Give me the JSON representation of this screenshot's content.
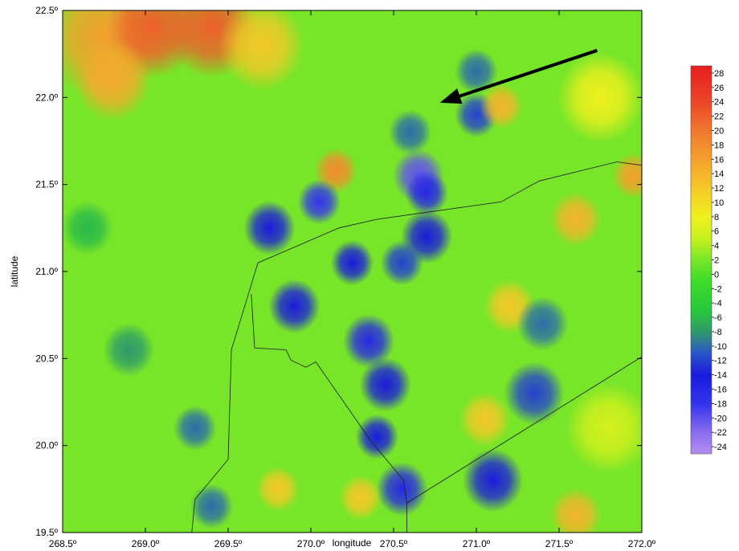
{
  "chart_data": {
    "type": "heatmap",
    "title": "",
    "xlabel": "longitude",
    "ylabel": "latitude",
    "xlim": [
      268.5,
      272.0
    ],
    "ylim": [
      19.5,
      22.5
    ],
    "x_ticks": [
      268.5,
      269.0,
      269.5,
      270.0,
      270.5,
      271.0,
      271.5,
      272.0
    ],
    "y_ticks": [
      19.5,
      20.0,
      20.5,
      21.0,
      21.5,
      22.0,
      22.5
    ],
    "x_tick_labels": [
      "268.5º",
      "269.0º",
      "269.5º",
      "270.0º",
      "270.5º",
      "271.0º",
      "271.5º",
      "272.0º"
    ],
    "y_tick_labels": [
      "19.5º",
      "20.0º",
      "20.5º",
      "21.0º",
      "21.5º",
      "22.0º",
      "22.5º"
    ],
    "colorbar": {
      "min": -25,
      "max": 29,
      "ticks": [
        28,
        26,
        24,
        22,
        20,
        18,
        16,
        14,
        12,
        10,
        8,
        6,
        4,
        2,
        0,
        -2,
        -4,
        -6,
        -8,
        -10,
        -12,
        -14,
        -16,
        -18,
        -20,
        -22,
        -24
      ],
      "tick_labels": [
        "28",
        "26",
        "24",
        "22",
        "20",
        "18",
        "16",
        "14",
        "12",
        "10",
        "8",
        "6",
        "4",
        "2",
        "0",
        "-2",
        "-4",
        "-6",
        "-8",
        "-10",
        "-12",
        "-14",
        "-16",
        "-18",
        "-20",
        "-22",
        "-24"
      ],
      "colors": [
        [
          -25,
          "#b48cf0"
        ],
        [
          -22,
          "#8a6cf0"
        ],
        [
          -18,
          "#3333ee"
        ],
        [
          -14,
          "#1a1adc"
        ],
        [
          -11,
          "#2a55c8"
        ],
        [
          -8,
          "#2f9a6a"
        ],
        [
          -5,
          "#28c83c"
        ],
        [
          -1,
          "#3cdc28"
        ],
        [
          2,
          "#78e628"
        ],
        [
          5,
          "#c8f01e"
        ],
        [
          8,
          "#f0f01e"
        ],
        [
          12,
          "#f5c828"
        ],
        [
          16,
          "#f5a02d"
        ],
        [
          20,
          "#f0782d"
        ],
        [
          24,
          "#eb4628"
        ],
        [
          29,
          "#e61e1e"
        ]
      ]
    },
    "features": {
      "centers": [
        {
          "lon": 268.75,
          "lat": 22.35,
          "value": 16,
          "r": 0.28
        },
        {
          "lon": 269.05,
          "lat": 22.4,
          "value": 22,
          "r": 0.22
        },
        {
          "lon": 269.4,
          "lat": 22.4,
          "value": 22,
          "r": 0.22
        },
        {
          "lon": 268.8,
          "lat": 22.1,
          "value": 15,
          "r": 0.18
        },
        {
          "lon": 269.7,
          "lat": 22.3,
          "value": 12,
          "r": 0.2
        },
        {
          "lon": 270.15,
          "lat": 21.58,
          "value": 18,
          "r": 0.1
        },
        {
          "lon": 270.6,
          "lat": 21.8,
          "value": -10,
          "r": 0.1
        },
        {
          "lon": 270.65,
          "lat": 21.55,
          "value": -20,
          "r": 0.12
        },
        {
          "lon": 270.7,
          "lat": 21.45,
          "value": -16,
          "r": 0.1
        },
        {
          "lon": 270.05,
          "lat": 21.4,
          "value": -18,
          "r": 0.1
        },
        {
          "lon": 269.75,
          "lat": 21.25,
          "value": -14,
          "r": 0.12
        },
        {
          "lon": 270.25,
          "lat": 21.05,
          "value": -14,
          "r": 0.1
        },
        {
          "lon": 270.7,
          "lat": 21.2,
          "value": -14,
          "r": 0.12
        },
        {
          "lon": 270.55,
          "lat": 21.05,
          "value": -12,
          "r": 0.1
        },
        {
          "lon": 269.9,
          "lat": 20.8,
          "value": -14,
          "r": 0.12
        },
        {
          "lon": 270.35,
          "lat": 20.6,
          "value": -16,
          "r": 0.12
        },
        {
          "lon": 270.45,
          "lat": 20.35,
          "value": -14,
          "r": 0.12
        },
        {
          "lon": 270.4,
          "lat": 20.05,
          "value": -14,
          "r": 0.1
        },
        {
          "lon": 270.55,
          "lat": 19.75,
          "value": -16,
          "r": 0.12
        },
        {
          "lon": 271.0,
          "lat": 21.9,
          "value": -12,
          "r": 0.1
        },
        {
          "lon": 271.0,
          "lat": 22.15,
          "value": -10,
          "r": 0.1
        },
        {
          "lon": 271.15,
          "lat": 21.95,
          "value": 14,
          "r": 0.1
        },
        {
          "lon": 271.2,
          "lat": 20.8,
          "value": 12,
          "r": 0.12
        },
        {
          "lon": 271.05,
          "lat": 20.15,
          "value": 12,
          "r": 0.12
        },
        {
          "lon": 271.6,
          "lat": 21.3,
          "value": 14,
          "r": 0.12
        },
        {
          "lon": 271.35,
          "lat": 20.3,
          "value": -12,
          "r": 0.14
        },
        {
          "lon": 271.1,
          "lat": 19.8,
          "value": -14,
          "r": 0.14
        },
        {
          "lon": 271.4,
          "lat": 20.7,
          "value": -10,
          "r": 0.12
        },
        {
          "lon": 271.6,
          "lat": 19.6,
          "value": 14,
          "r": 0.12
        },
        {
          "lon": 271.95,
          "lat": 21.55,
          "value": 16,
          "r": 0.1
        },
        {
          "lon": 268.9,
          "lat": 20.55,
          "value": -8,
          "r": 0.12
        },
        {
          "lon": 269.4,
          "lat": 19.65,
          "value": -10,
          "r": 0.1
        },
        {
          "lon": 269.3,
          "lat": 20.1,
          "value": -10,
          "r": 0.1
        },
        {
          "lon": 268.65,
          "lat": 21.25,
          "value": -6,
          "r": 0.12
        },
        {
          "lon": 269.8,
          "lat": 19.75,
          "value": 12,
          "r": 0.1
        },
        {
          "lon": 270.3,
          "lat": 19.7,
          "value": 12,
          "r": 0.1
        },
        {
          "lon": 271.8,
          "lat": 20.1,
          "value": 6,
          "r": 0.2
        },
        {
          "lon": 271.75,
          "lat": 22.0,
          "value": 8,
          "r": 0.2
        }
      ],
      "background_value": 2
    },
    "arrow": {
      "from": [
        271.73,
        22.27
      ],
      "to": [
        270.78,
        21.97
      ]
    },
    "boundary_lines": [
      [
        [
          269.28,
          19.5
        ],
        [
          269.3,
          19.69
        ],
        [
          269.5,
          19.92
        ],
        [
          269.52,
          20.55
        ],
        [
          269.68,
          21.05
        ],
        [
          270.17,
          21.25
        ],
        [
          270.4,
          21.3
        ],
        [
          271.15,
          21.4
        ],
        [
          271.38,
          21.52
        ],
        [
          271.85,
          21.63
        ],
        [
          272.0,
          21.61
        ]
      ],
      [
        [
          269.64,
          20.87
        ],
        [
          269.66,
          20.56
        ],
        [
          269.85,
          20.55
        ],
        [
          269.88,
          20.49
        ],
        [
          269.97,
          20.45
        ],
        [
          270.03,
          20.48
        ],
        [
          270.36,
          20.03
        ],
        [
          270.56,
          19.8
        ],
        [
          270.58,
          19.67
        ],
        [
          270.58,
          19.5
        ]
      ],
      [
        [
          270.58,
          19.67
        ],
        [
          272.0,
          20.51
        ]
      ]
    ]
  }
}
